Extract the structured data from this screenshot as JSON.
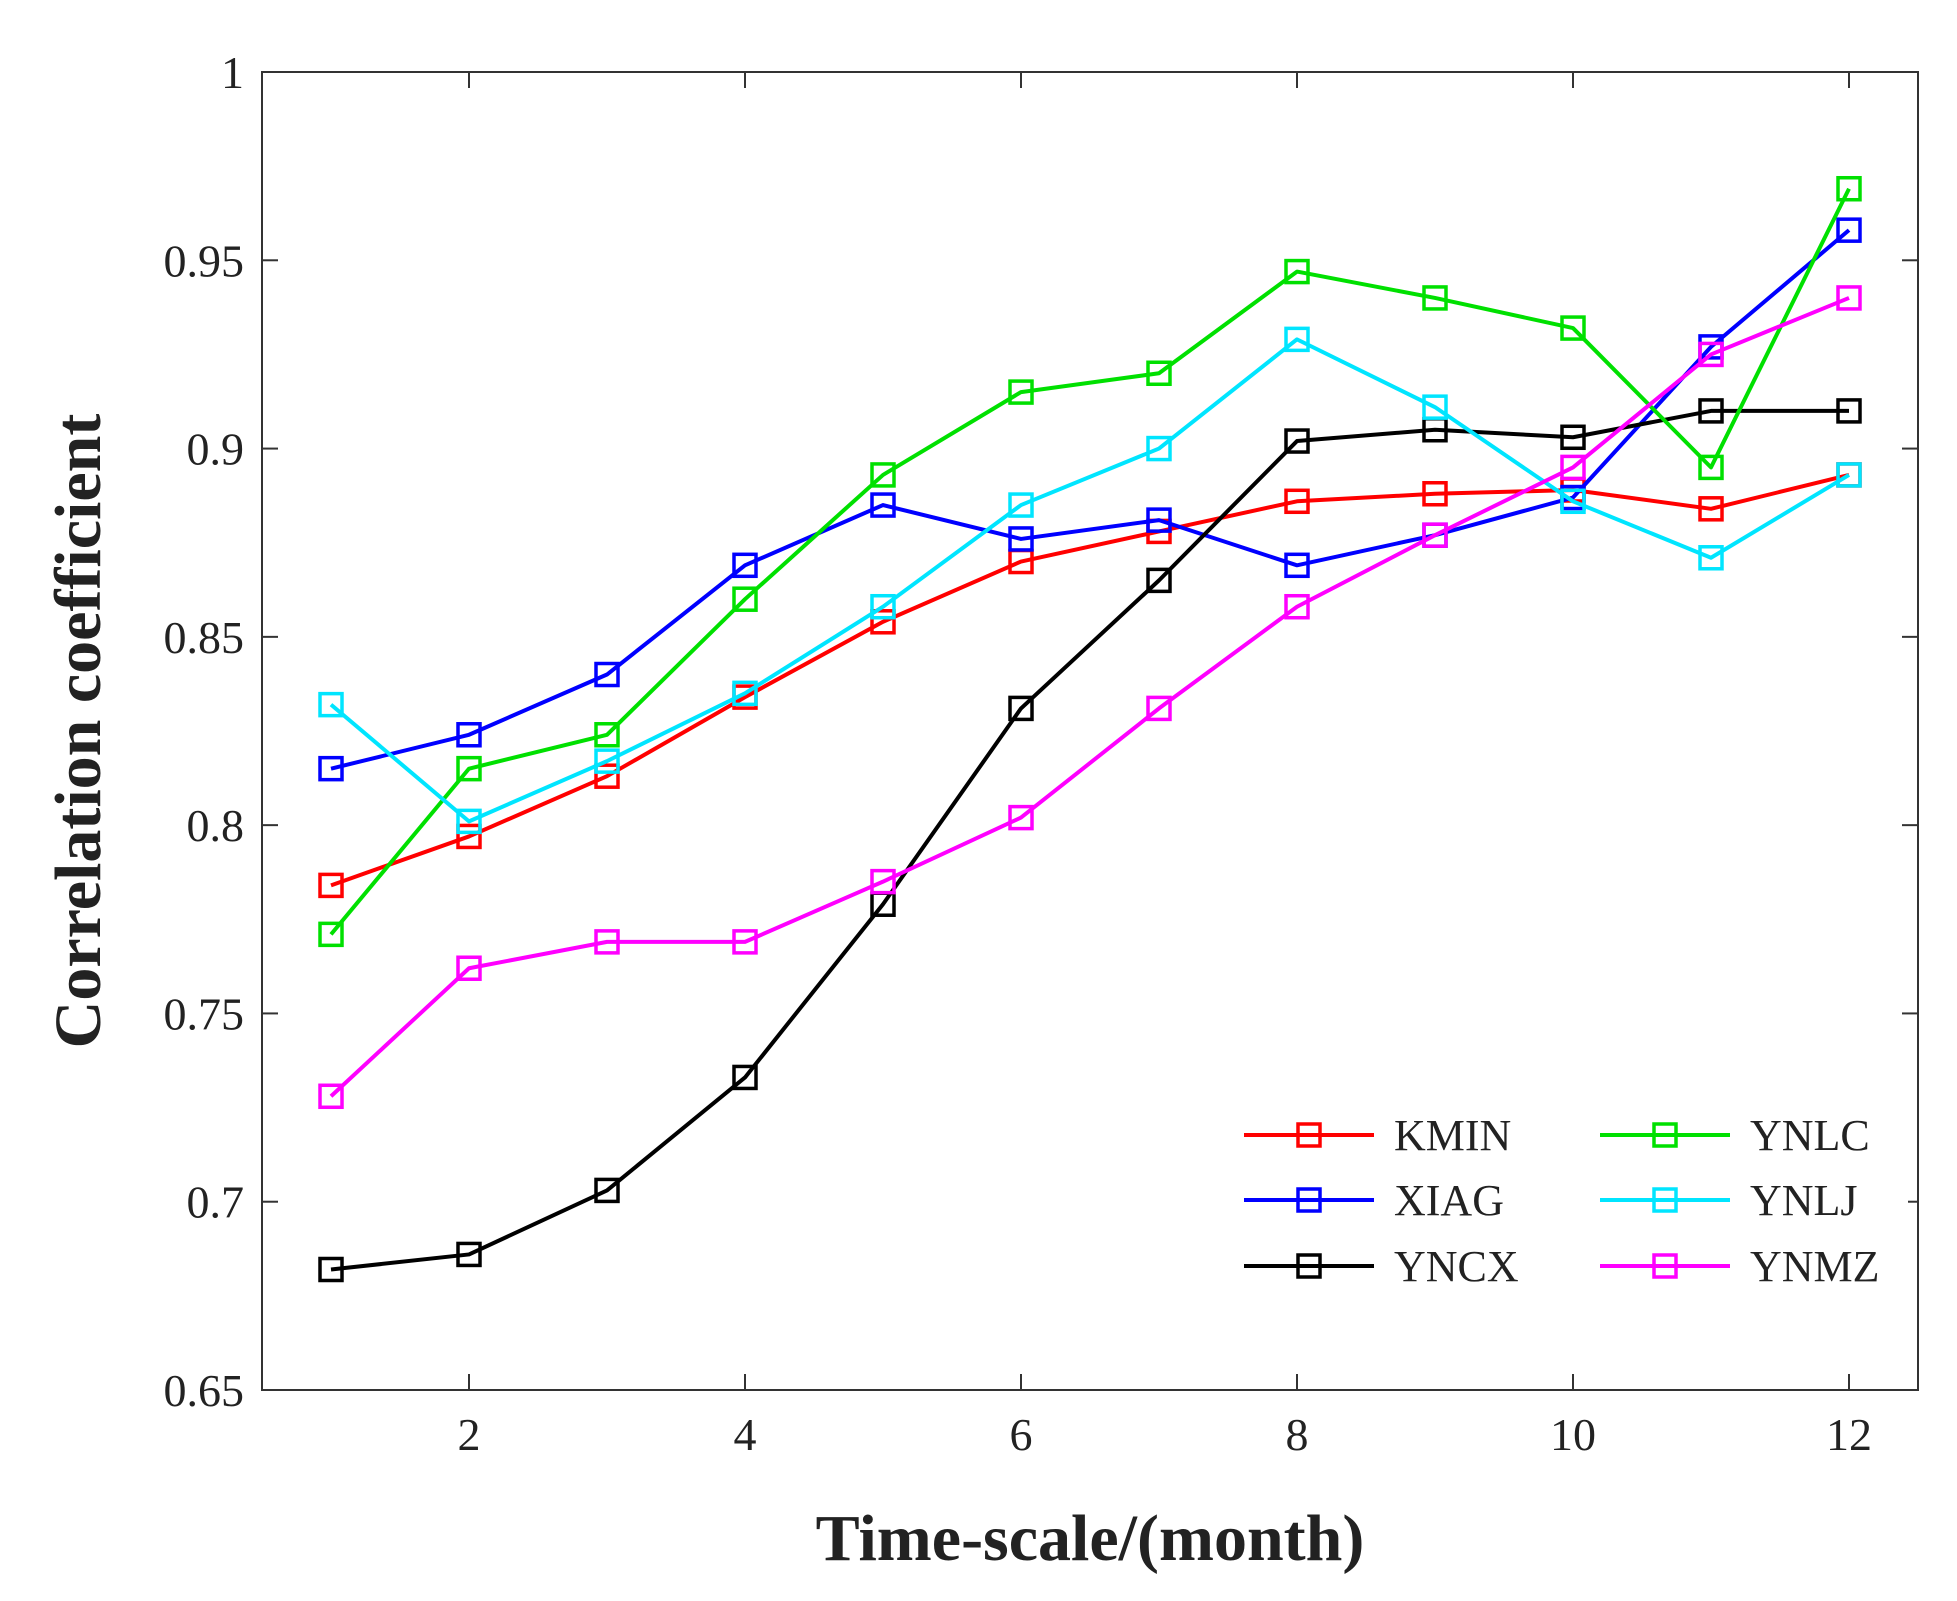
{
  "chart_data": {
    "type": "line",
    "title": "",
    "xlabel": "Time-scale/(month)",
    "ylabel": "Correlation coefficient",
    "xlim": [
      0.5,
      12.5
    ],
    "ylim": [
      0.65,
      1.0
    ],
    "xticks": [
      2,
      4,
      6,
      8,
      10,
      12
    ],
    "yticks": [
      0.65,
      0.7,
      0.75,
      0.8,
      0.85,
      0.9,
      0.95,
      1.0
    ],
    "ytick_labels": [
      "0.65",
      "0.7",
      "0.75",
      "0.8",
      "0.85",
      "0.9",
      "0.95",
      "1"
    ],
    "xtick_labels": [
      "2",
      "4",
      "6",
      "8",
      "10",
      "12"
    ],
    "grid": false,
    "legend_position": "bottom-right",
    "x": [
      1,
      2,
      3,
      4,
      5,
      6,
      7,
      8,
      9,
      10,
      11,
      12
    ],
    "series": [
      {
        "name": "KMIN",
        "color": "#ff0000",
        "values": [
          0.784,
          0.797,
          0.813,
          0.834,
          0.854,
          0.87,
          0.878,
          0.886,
          0.888,
          0.889,
          0.884,
          0.893
        ]
      },
      {
        "name": "XIAG",
        "color": "#0000ff",
        "values": [
          0.815,
          0.824,
          0.84,
          0.869,
          0.885,
          0.876,
          0.881,
          0.869,
          0.877,
          0.887,
          0.927,
          0.958
        ]
      },
      {
        "name": "YNCX",
        "color": "#000000",
        "values": [
          0.682,
          0.686,
          0.703,
          0.733,
          0.779,
          0.831,
          0.865,
          0.902,
          0.905,
          0.903,
          0.91,
          0.91
        ]
      },
      {
        "name": "YNLC",
        "color": "#00e000",
        "values": [
          0.771,
          0.815,
          0.824,
          0.86,
          0.893,
          0.915,
          0.92,
          0.947,
          0.94,
          0.932,
          0.895,
          0.969
        ]
      },
      {
        "name": "YNLJ",
        "color": "#00e5ff",
        "values": [
          0.832,
          0.801,
          0.817,
          0.835,
          0.858,
          0.885,
          0.9,
          0.929,
          0.911,
          0.886,
          0.871,
          0.893
        ]
      },
      {
        "name": "YNMZ",
        "color": "#ff00ff",
        "values": [
          0.728,
          0.762,
          0.769,
          0.769,
          0.785,
          0.802,
          0.831,
          0.858,
          0.877,
          0.895,
          0.925,
          0.94
        ]
      }
    ]
  }
}
